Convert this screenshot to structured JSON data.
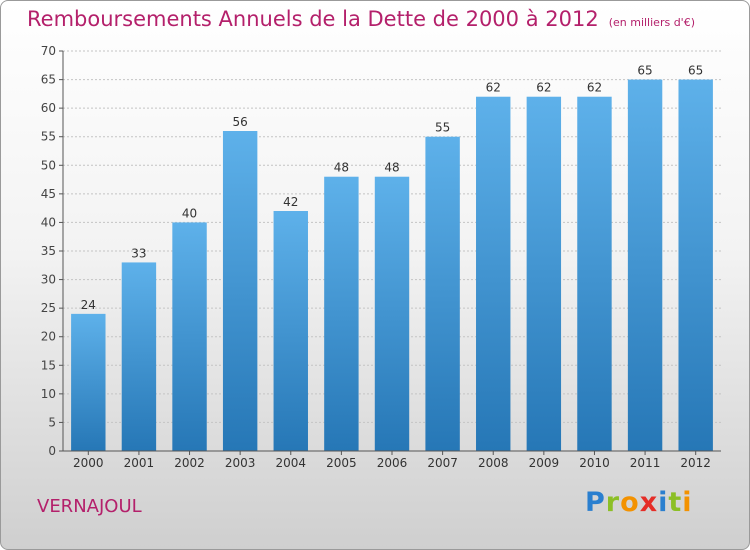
{
  "header": {
    "title": "Remboursements Annuels de la Dette de 2000 à 2012",
    "unit": "(en milliers d'€)"
  },
  "commune": "VERNAJOUL",
  "logo": {
    "text": "Proxiti",
    "letters": [
      {
        "char": "P",
        "color": "#2a7fcf"
      },
      {
        "char": "r",
        "color": "#8cbf26"
      },
      {
        "char": "o",
        "color": "#f39200"
      },
      {
        "char": "x",
        "color": "#e52d27"
      },
      {
        "char": "i",
        "color": "#2a7fcf"
      },
      {
        "char": "t",
        "color": "#8cbf26"
      },
      {
        "char": "i",
        "color": "#f39200"
      }
    ]
  },
  "colors": {
    "accent": "#b4206b",
    "bar_light": "#5eb1ea",
    "bar_dark": "#2677b6"
  },
  "chart_data": {
    "type": "bar",
    "categories": [
      "2000",
      "2001",
      "2002",
      "2003",
      "2004",
      "2005",
      "2006",
      "2007",
      "2008",
      "2009",
      "2010",
      "2011",
      "2012"
    ],
    "values": [
      24,
      33,
      40,
      56,
      42,
      48,
      48,
      55,
      62,
      62,
      62,
      65,
      65
    ],
    "ylim": [
      0,
      70
    ],
    "yticks": [
      0,
      5,
      10,
      15,
      20,
      25,
      30,
      35,
      40,
      45,
      50,
      55,
      60,
      65,
      70
    ],
    "grid": true,
    "data_labels": true
  }
}
